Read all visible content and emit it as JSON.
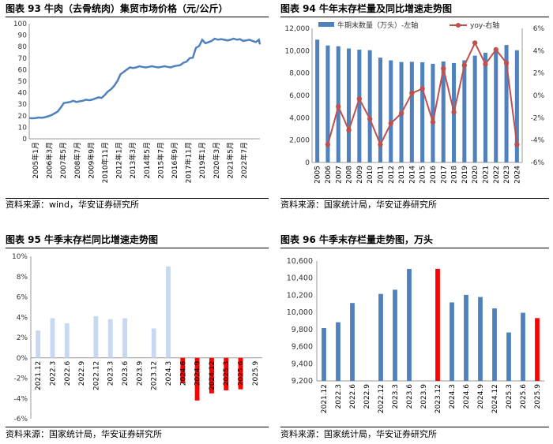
{
  "panels": [
    {
      "title": "图表 93  牛肉（去骨统肉）集贸市场价格（元/公斤）",
      "source": "资料来源：wind，华安证券研究所"
    },
    {
      "title": "图表 94  牛年末存栏量及同比增速走势图",
      "source": "资料来源：国家统计局，华安证券研究所"
    },
    {
      "title": "图表 95  牛季末存栏同比增速走势图",
      "source": "资料来源：国家统计局，华安证券研究所"
    },
    {
      "title": "图表 96  牛季末存栏量走势图，万头",
      "source": "资料来源：国家统计局，华安证券研究所"
    }
  ],
  "chart_data": [
    {
      "type": "line",
      "ylim": [
        0,
        100
      ],
      "yticks": [
        0,
        10,
        20,
        30,
        40,
        50,
        60,
        70,
        80,
        90,
        100
      ],
      "x_labels": [
        "2005年1月",
        "2006年3月",
        "2007年5月",
        "2008年7月",
        "2009年9月",
        "2010年11月",
        "2012年1月",
        "2013年3月",
        "2014年5月",
        "2015年7月",
        "2016年9月",
        "2017年11月",
        "2019年1月",
        "2020年3月",
        "2021年5月",
        "2022年7月"
      ],
      "color": "#4f81bd",
      "series": [
        {
          "x": [
            0,
            3,
            6,
            9,
            12,
            15,
            18,
            21,
            24,
            27,
            30,
            33,
            36,
            39,
            42,
            45,
            48,
            51,
            54,
            57,
            60,
            63,
            66,
            69,
            72,
            75,
            78,
            81,
            84,
            87,
            90,
            93,
            96,
            99,
            102,
            105,
            108,
            111,
            114,
            117,
            120,
            123,
            126,
            129,
            132,
            135,
            138,
            141,
            144,
            147,
            150,
            153,
            156,
            159,
            162,
            165,
            168,
            171,
            174,
            177,
            180,
            183,
            186,
            189,
            192,
            195,
            198,
            201,
            204,
            207,
            210,
            213,
            216,
            219,
            220
          ],
          "values": [
            18,
            17.8,
            18,
            18.5,
            18.2,
            18.8,
            19.5,
            20.5,
            22,
            23.5,
            27,
            31,
            31.5,
            32,
            33,
            32,
            32.5,
            33,
            34,
            33.5,
            34,
            35,
            36,
            35.5,
            38,
            41,
            43,
            46,
            50,
            56,
            58,
            60,
            62,
            61.5,
            62,
            63,
            62.5,
            62,
            62.5,
            63,
            62.5,
            62,
            62.5,
            63,
            62.5,
            62,
            63,
            63.5,
            64,
            66,
            67,
            70,
            70.5,
            79,
            80.5,
            86,
            83,
            84,
            85,
            87,
            86,
            86.5,
            86,
            85.5,
            86,
            87,
            86,
            86.5,
            85,
            85.5,
            86,
            85,
            84,
            86,
            82
          ]
        }
      ]
    },
    {
      "type": "bar+line",
      "categories": [
        "2005",
        "2006",
        "2007",
        "2008",
        "2009",
        "2010",
        "2011",
        "2012",
        "2013",
        "2014",
        "2015",
        "2016",
        "2017",
        "2018",
        "2019",
        "2020",
        "2021",
        "2022",
        "2023",
        "2024"
      ],
      "left_ylim": [
        0,
        12000
      ],
      "left_ticks": [
        "0",
        "2,000",
        "4,000",
        "6,000",
        "8,000",
        "10,000",
        "12,000"
      ],
      "right_ylim": [
        -6,
        6
      ],
      "right_ticks": [
        "-6%",
        "-4%",
        "-2%",
        "0%",
        "2%",
        "4%",
        "6%"
      ],
      "series": [
        {
          "name": "牛期末数量（万头）-左轴",
          "type": "bar",
          "color": "#4f81bd",
          "values": [
            10990,
            10470,
            10400,
            10200,
            10100,
            10050,
            9380,
            9140,
            8990,
            9010,
            8970,
            8830,
            9040,
            8900,
            9140,
            9560,
            9820,
            10216,
            10509,
            10047
          ]
        },
        {
          "name": "yoy-右轴",
          "type": "line",
          "color": "#c0504d",
          "values": [
            null,
            -4.4,
            -1.0,
            -3.1,
            -0.3,
            -2.1,
            -4.4,
            -2.5,
            -1.6,
            0.2,
            0.6,
            -2.4,
            2.4,
            -1.5,
            2.7,
            4.7,
            2.8,
            4.1,
            2.9,
            -4.4
          ]
        }
      ]
    },
    {
      "type": "bar",
      "categories": [
        "2021.12",
        "2022.3",
        "2022.6",
        "2022.9",
        "2022.12",
        "2023.3",
        "2023.6",
        "2023.9",
        "2023.12",
        "2024.3",
        "2024.6",
        "2024.9",
        "2024.12",
        "2025.3",
        "2025.6",
        "2025.9"
      ],
      "ylim": [
        -6,
        10
      ],
      "yticks": [
        "-6%",
        "-4%",
        "-2%",
        "0%",
        "2%",
        "4%",
        "6%",
        "8%",
        "10%"
      ],
      "values": [
        2.7,
        3.9,
        3.4,
        null,
        4.1,
        3.8,
        3.9,
        null,
        2.9,
        9.0,
        -2.5,
        -4.2,
        -3.5,
        -3.2,
        -3.1,
        null
      ],
      "colors": [
        "#c6d9f1",
        "#c6d9f1",
        "#c6d9f1",
        "#c6d9f1",
        "#c6d9f1",
        "#c6d9f1",
        "#c6d9f1",
        "#c6d9f1",
        "#c6d9f1",
        "#c6d9f1",
        "#ff0000",
        "#ff0000",
        "#ff0000",
        "#ff0000",
        "#ff0000",
        "#ff0000"
      ]
    },
    {
      "type": "bar",
      "categories": [
        "2021.12",
        "2022.3",
        "2022.6",
        "2022.9",
        "2022.12",
        "2023.3",
        "2023.6",
        "2023.9",
        "2023.12",
        "2024.3",
        "2024.6",
        "2024.9",
        "2024.12",
        "2025.3",
        "2025.6",
        "2025.9"
      ],
      "ylim": [
        9200,
        10600
      ],
      "yticks": [
        "9,200",
        "9,400",
        "9,600",
        "9,800",
        "10,000",
        "10,200",
        "10,400",
        "10,600"
      ],
      "values": [
        9817,
        9885,
        10110,
        null,
        10216,
        10265,
        10508,
        null,
        10509,
        10117,
        10205,
        10180,
        10047,
        9766,
        9996,
        9934
      ],
      "colors": [
        "#4f81bd",
        "#4f81bd",
        "#4f81bd",
        "#4f81bd",
        "#4f81bd",
        "#4f81bd",
        "#4f81bd",
        "#4f81bd",
        "#ff0000",
        "#4f81bd",
        "#4f81bd",
        "#4f81bd",
        "#4f81bd",
        "#4f81bd",
        "#4f81bd",
        "#ff0000"
      ]
    }
  ]
}
